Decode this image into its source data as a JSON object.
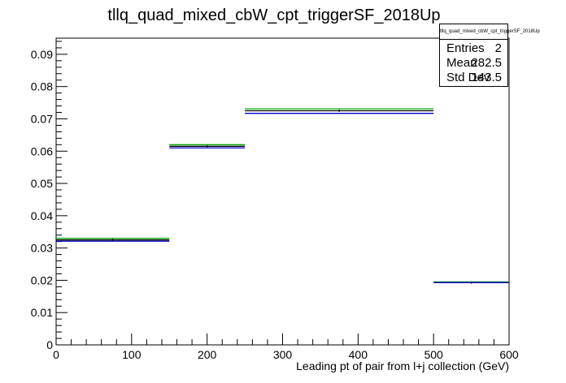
{
  "chart_data": {
    "type": "histogram",
    "title": "tllq_quad_mixed_cbW_cpt_triggerSF_2018Up",
    "xlabel": "Leading pt of pair from l+j collection (GeV)",
    "ylabel": "",
    "xlim": [
      0,
      600
    ],
    "ylim": [
      0,
      0.095
    ],
    "x_ticks": [
      0,
      100,
      200,
      300,
      400,
      500,
      600
    ],
    "y_ticks": [
      0,
      0.01,
      0.02,
      0.03,
      0.04,
      0.05,
      0.06,
      0.07,
      0.08,
      0.09
    ],
    "bins": [
      {
        "low": 0,
        "high": 150
      },
      {
        "low": 150,
        "high": 250
      },
      {
        "low": 250,
        "high": 500
      },
      {
        "low": 500,
        "high": 600
      }
    ],
    "series": [
      {
        "color": "#000000",
        "values": [
          0.0325,
          0.0615,
          0.0725,
          0.0193
        ]
      },
      {
        "color": "#00aa00",
        "values": [
          0.033,
          0.062,
          0.0731,
          0.0195
        ]
      },
      {
        "color": "#0000cc",
        "values": [
          0.0321,
          0.061,
          0.0717,
          0.0193
        ]
      }
    ],
    "stats": {
      "title": "tllq_quad_mixed_cbW_cpt_triggerSF_2018Up",
      "entries_label": "Entries",
      "entries": "2",
      "mean_label": "Mean",
      "mean": "282.5",
      "stddev_label": "Std Dev",
      "stddev": "143.5"
    },
    "grid": false,
    "legend": "none"
  }
}
